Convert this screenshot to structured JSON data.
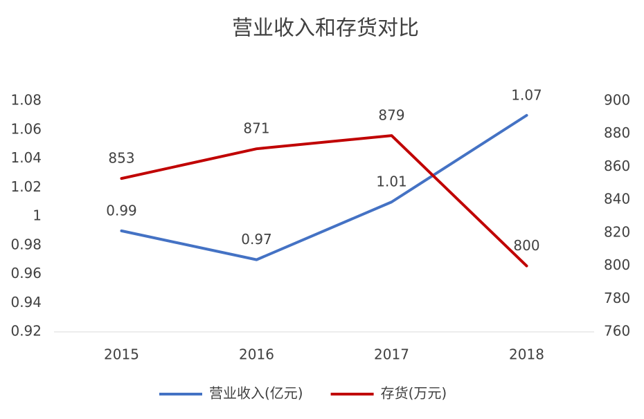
{
  "chart_data": {
    "type": "line",
    "title": "营业收入和存货对比",
    "categories": [
      "2015",
      "2016",
      "2017",
      "2018"
    ],
    "series": [
      {
        "name": "营业收入(亿元)",
        "color": "#4472c4",
        "values": [
          0.99,
          0.97,
          1.01,
          1.07
        ]
      },
      {
        "name": "存货(万元)",
        "color": "#c00000",
        "axis": "y2",
        "values": [
          853,
          871,
          879,
          800
        ]
      }
    ],
    "ylim": [
      0.92,
      1.08
    ],
    "yticks": [
      0.92,
      0.94,
      0.96,
      0.98,
      1,
      1.02,
      1.04,
      1.06,
      1.08
    ],
    "y2lim": [
      760,
      900
    ],
    "y2ticks": [
      760,
      780,
      800,
      820,
      840,
      860,
      880,
      900
    ],
    "grid": false,
    "legend": "bottom"
  }
}
